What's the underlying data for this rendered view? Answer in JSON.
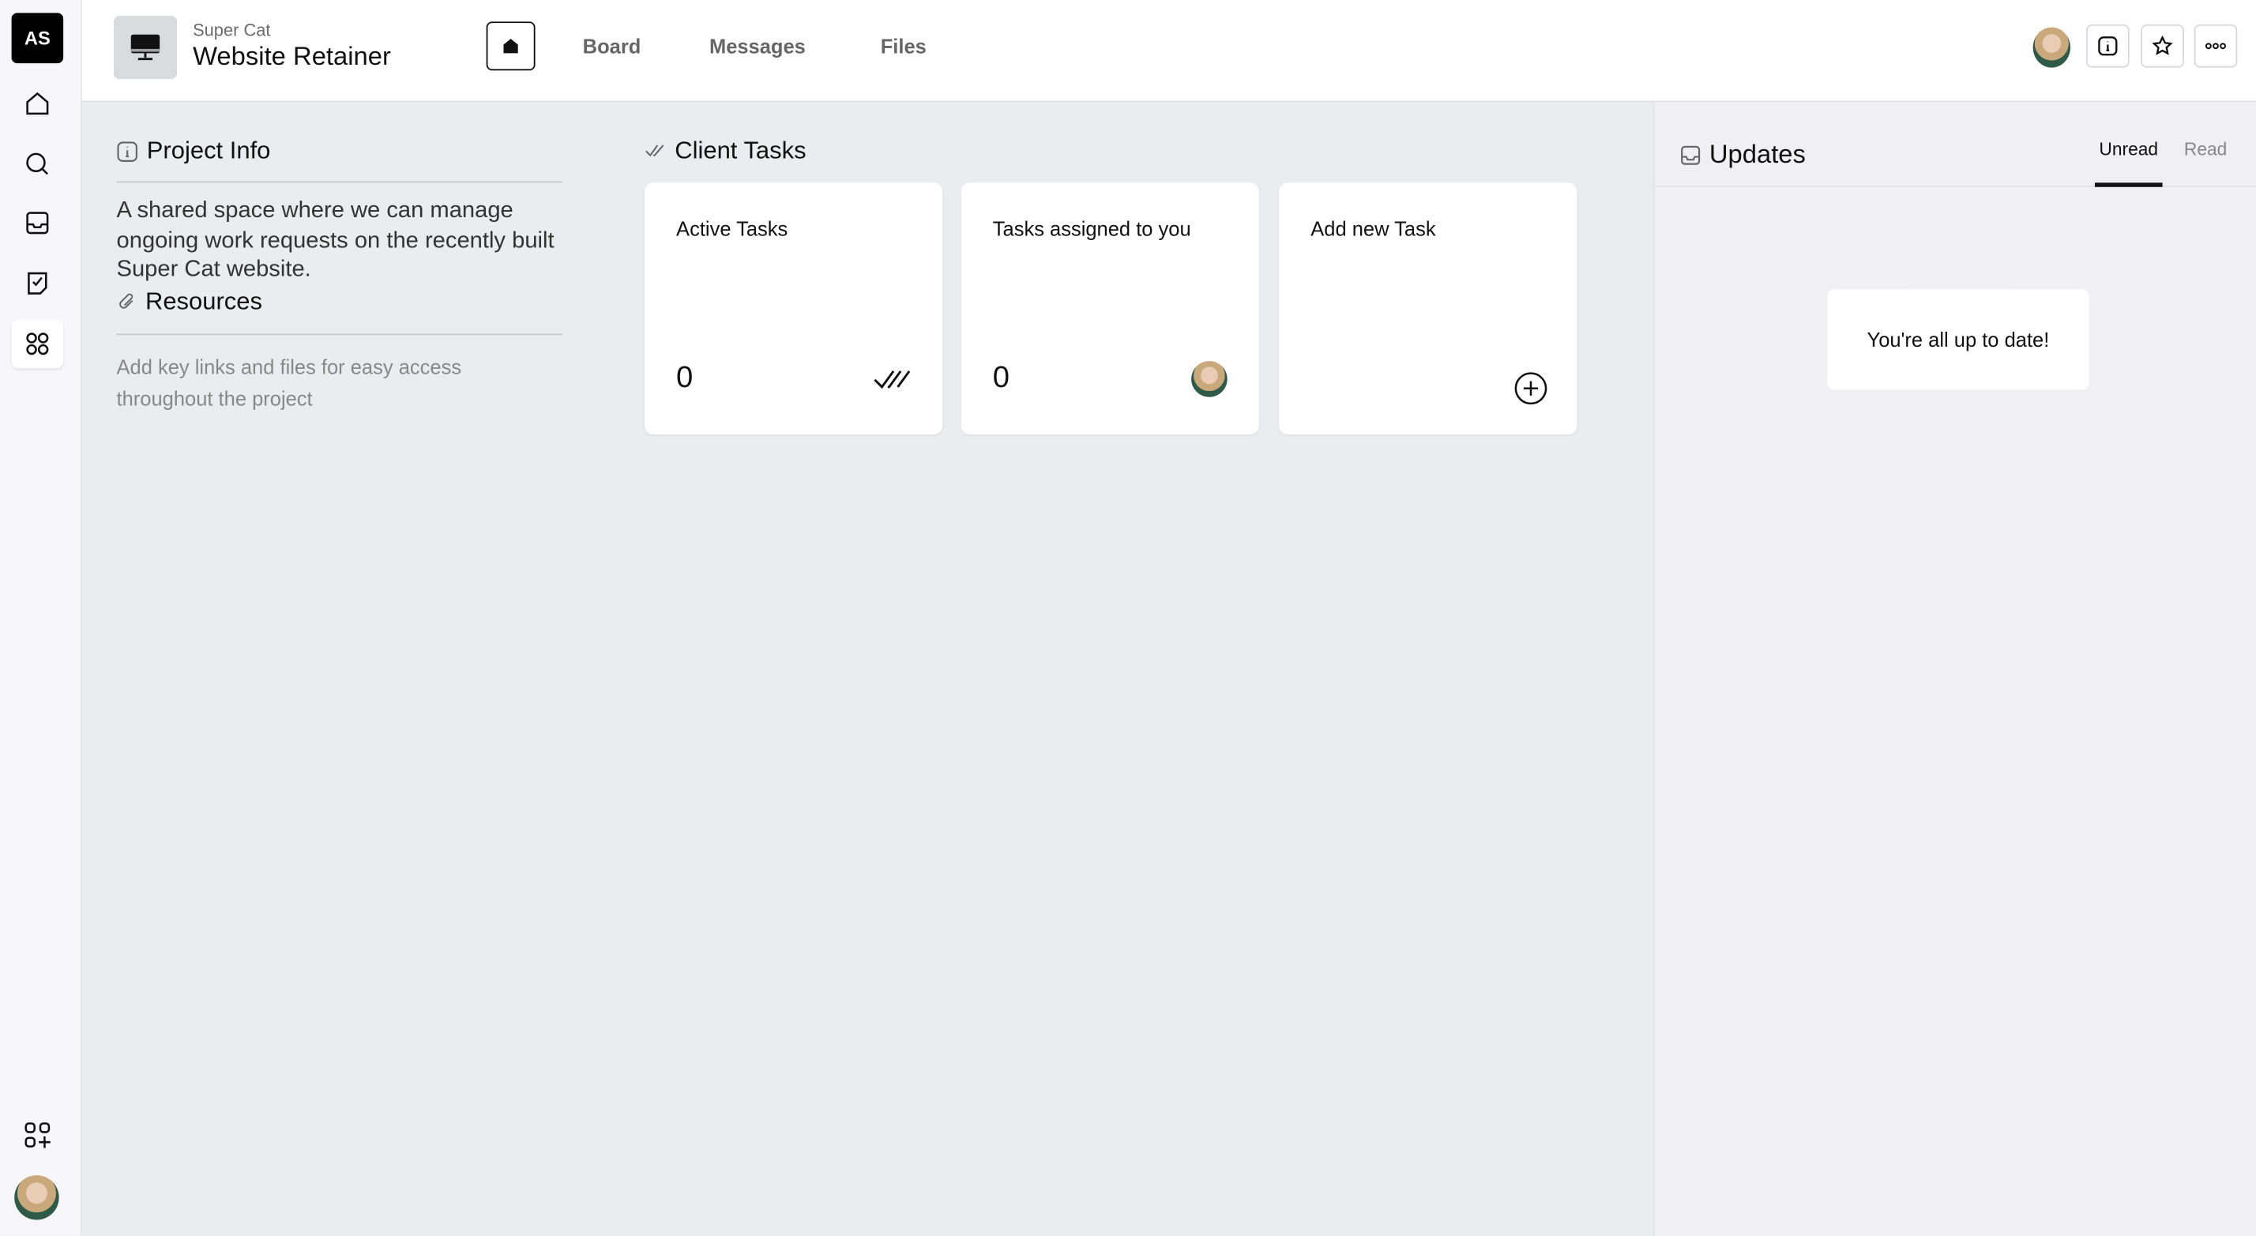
{
  "workspace": {
    "initials": "AS"
  },
  "rail": {
    "items": [
      {
        "icon": "home-icon"
      },
      {
        "icon": "search-icon"
      },
      {
        "icon": "inbox-icon"
      },
      {
        "icon": "tasks-icon"
      },
      {
        "icon": "apps-icon",
        "active": true
      }
    ],
    "bottom": [
      {
        "icon": "add-app-icon"
      },
      {
        "icon": "user-avatar"
      }
    ]
  },
  "header": {
    "client": "Super Cat",
    "title": "Website Retainer",
    "tabs": [
      {
        "label": "Board"
      },
      {
        "label": "Messages"
      },
      {
        "label": "Files"
      }
    ],
    "actions": [
      "info-icon",
      "star-icon",
      "more-icon"
    ]
  },
  "project_info": {
    "title": "Project Info",
    "description": "A shared space where we can manage ongoing work requests on the recently built Super Cat website.",
    "resources_title": "Resources",
    "resources_hint": "Add key links and files for easy access throughout the project"
  },
  "client_tasks": {
    "title": "Client Tasks",
    "cards": [
      {
        "label": "Active Tasks",
        "count": "0"
      },
      {
        "label": "Tasks assigned to you",
        "count": "0"
      },
      {
        "label": "Add new Task"
      }
    ]
  },
  "updates": {
    "title": "Updates",
    "tabs": [
      {
        "label": "Unread",
        "active": true
      },
      {
        "label": "Read"
      }
    ],
    "empty_message": "You're all up to date!"
  },
  "colors": {
    "accent": "#111111",
    "background": "#ebecf0",
    "panel": "#f0f0f4"
  }
}
